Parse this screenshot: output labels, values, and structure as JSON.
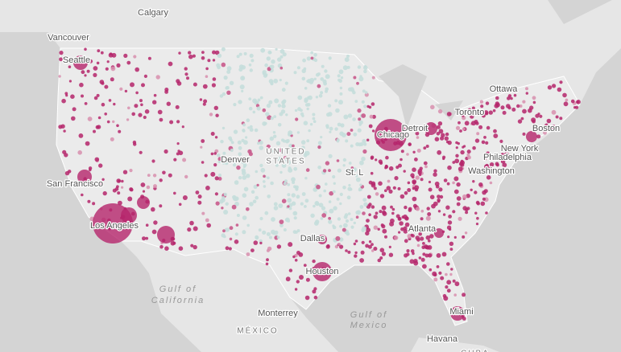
{
  "map": {
    "labels": [
      {
        "text": "Calgary"
      },
      {
        "text": "Vancouver"
      },
      {
        "text": "Seattle"
      },
      {
        "text": "Ottawa"
      },
      {
        "text": "Toronto"
      },
      {
        "text": "Boston"
      },
      {
        "text": "Detroit"
      },
      {
        "text": "Chicago"
      },
      {
        "text": "New York"
      },
      {
        "text": "Philadelphia"
      },
      {
        "text": "Washington"
      },
      {
        "text": "Denver"
      },
      {
        "text": "UNITED"
      },
      {
        "text": "STATES"
      },
      {
        "text": "St. L"
      },
      {
        "text": "San Francisco"
      },
      {
        "text": "Los Angeles"
      },
      {
        "text": "Dallas"
      },
      {
        "text": "Atlanta"
      },
      {
        "text": "Houston"
      },
      {
        "text": "Miami"
      },
      {
        "text": "Gulf of"
      },
      {
        "text": "California"
      },
      {
        "text": "Monterrey"
      },
      {
        "text": "MÉXICO"
      },
      {
        "text": "Gulf of"
      },
      {
        "text": "Mexico"
      },
      {
        "text": "Havana"
      },
      {
        "text": "CUBA"
      }
    ]
  }
}
